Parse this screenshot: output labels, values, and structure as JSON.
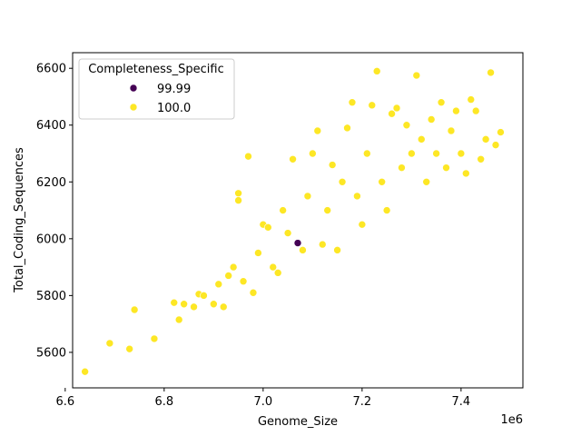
{
  "chart_data": {
    "type": "scatter",
    "xlabel": "Genome_Size",
    "ylabel": "Total_Coding_Sequences",
    "x_offset_label": "1e6",
    "xlim": [
      6.615,
      7.525
    ],
    "ylim": [
      5475,
      6655
    ],
    "xticks": [
      6.6,
      6.8,
      7.0,
      7.2,
      7.4
    ],
    "xtick_labels": [
      "6.6",
      "6.8",
      "7.0",
      "7.2",
      "7.4"
    ],
    "yticks": [
      5600,
      5800,
      6000,
      6200,
      6400,
      6600
    ],
    "ytick_labels": [
      "5600",
      "5800",
      "6000",
      "6200",
      "6400",
      "6600"
    ],
    "grid": false,
    "legend": {
      "title": "Completeness_Specific",
      "placement": "top-left",
      "entries": [
        {
          "label": "99.99",
          "color": "#440154"
        },
        {
          "label": "100.0",
          "color": "#fde725"
        }
      ]
    },
    "series": [
      {
        "name": "99.99",
        "color": "#440154",
        "points": [
          [
            7.07,
            5985
          ]
        ]
      },
      {
        "name": "100.0",
        "color": "#fde725",
        "points": [
          [
            6.64,
            5532
          ],
          [
            6.69,
            5632
          ],
          [
            6.73,
            5612
          ],
          [
            6.74,
            5750
          ],
          [
            6.78,
            5648
          ],
          [
            6.82,
            5775
          ],
          [
            6.83,
            5715
          ],
          [
            6.84,
            5770
          ],
          [
            6.86,
            5760
          ],
          [
            6.87,
            5805
          ],
          [
            6.88,
            5800
          ],
          [
            6.9,
            5770
          ],
          [
            6.91,
            5840
          ],
          [
            6.92,
            5760
          ],
          [
            6.93,
            5870
          ],
          [
            6.94,
            5900
          ],
          [
            6.95,
            6160
          ],
          [
            6.95,
            6135
          ],
          [
            6.96,
            5850
          ],
          [
            6.97,
            6290
          ],
          [
            6.98,
            5810
          ],
          [
            6.99,
            5950
          ],
          [
            7.0,
            6050
          ],
          [
            7.01,
            6040
          ],
          [
            7.02,
            5900
          ],
          [
            7.03,
            5880
          ],
          [
            7.04,
            6100
          ],
          [
            7.05,
            6020
          ],
          [
            7.06,
            6280
          ],
          [
            7.08,
            5960
          ],
          [
            7.09,
            6150
          ],
          [
            7.1,
            6300
          ],
          [
            7.11,
            6380
          ],
          [
            7.12,
            5980
          ],
          [
            7.13,
            6100
          ],
          [
            7.14,
            6260
          ],
          [
            7.15,
            5960
          ],
          [
            7.16,
            6200
          ],
          [
            7.17,
            6390
          ],
          [
            7.18,
            6480
          ],
          [
            7.19,
            6150
          ],
          [
            7.2,
            6050
          ],
          [
            7.21,
            6300
          ],
          [
            7.22,
            6470
          ],
          [
            7.23,
            6590
          ],
          [
            7.24,
            6200
          ],
          [
            7.25,
            6100
          ],
          [
            7.26,
            6440
          ],
          [
            7.27,
            6460
          ],
          [
            7.28,
            6250
          ],
          [
            7.29,
            6400
          ],
          [
            7.3,
            6300
          ],
          [
            7.31,
            6575
          ],
          [
            7.32,
            6350
          ],
          [
            7.33,
            6200
          ],
          [
            7.34,
            6420
          ],
          [
            7.35,
            6300
          ],
          [
            7.36,
            6480
          ],
          [
            7.37,
            6250
          ],
          [
            7.38,
            6380
          ],
          [
            7.39,
            6450
          ],
          [
            7.4,
            6300
          ],
          [
            7.41,
            6230
          ],
          [
            7.42,
            6490
          ],
          [
            7.43,
            6450
          ],
          [
            7.44,
            6280
          ],
          [
            7.45,
            6350
          ],
          [
            7.46,
            6585
          ],
          [
            7.47,
            6330
          ],
          [
            7.48,
            6375
          ]
        ]
      }
    ]
  }
}
